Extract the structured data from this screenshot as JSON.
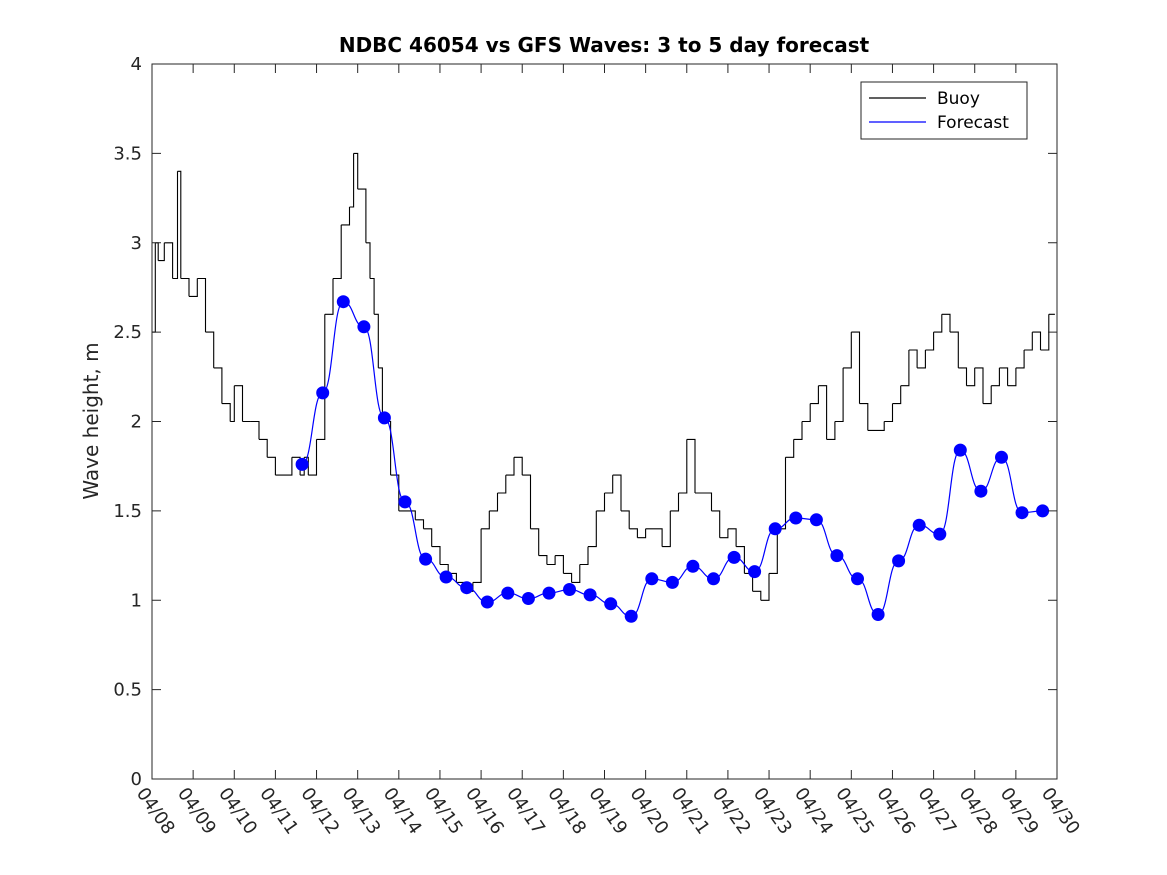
{
  "chart_data": {
    "type": "line",
    "title": "NDBC 46054 vs GFS Waves: 3 to 5 day forecast",
    "xlabel": "",
    "ylabel": "Wave height, m",
    "xlim": [
      "04/08",
      "04/30"
    ],
    "ylim": [
      0,
      4
    ],
    "yticks": [
      0,
      0.5,
      1,
      1.5,
      2,
      2.5,
      3,
      3.5,
      4
    ],
    "yticklabels": [
      "0",
      "0.5",
      "1",
      "1.5",
      "2",
      "2.5",
      "3",
      "3.5",
      "4"
    ],
    "xticklabels": [
      "04/08",
      "04/09",
      "04/10",
      "04/11",
      "04/12",
      "04/13",
      "04/14",
      "04/15",
      "04/16",
      "04/17",
      "04/18",
      "04/19",
      "04/20",
      "04/21",
      "04/22",
      "04/23",
      "04/24",
      "04/25",
      "04/26",
      "04/27",
      "04/28",
      "04/29",
      "04/30"
    ],
    "grid": false,
    "legend": {
      "placement": "top-right",
      "entries": [
        "Buoy",
        "Forecast"
      ]
    },
    "colors": {
      "buoy": "#000000",
      "forecast": "#0000ff",
      "markers": "#0000ff"
    },
    "series": [
      {
        "name": "Buoy",
        "x_days_from_0408": [
          0,
          0.08,
          0.15,
          0.3,
          0.5,
          0.62,
          0.7,
          0.9,
          1.1,
          1.3,
          1.5,
          1.7,
          1.9,
          2.0,
          2.2,
          2.4,
          2.6,
          2.8,
          3.0,
          3.2,
          3.4,
          3.6,
          3.7,
          3.8,
          4.0,
          4.2,
          4.4,
          4.6,
          4.8,
          4.9,
          5.0,
          5.2,
          5.3,
          5.4,
          5.5,
          5.6,
          5.8,
          6.0,
          6.2,
          6.4,
          6.6,
          6.8,
          7.0,
          7.2,
          7.4,
          7.6,
          7.8,
          8.0,
          8.2,
          8.4,
          8.6,
          8.8,
          9.0,
          9.2,
          9.4,
          9.6,
          9.8,
          10.0,
          10.2,
          10.4,
          10.6,
          10.8,
          11.0,
          11.2,
          11.4,
          11.6,
          11.8,
          12.0,
          12.2,
          12.4,
          12.6,
          12.8,
          13.0,
          13.2,
          13.4,
          13.6,
          13.8,
          14.0,
          14.2,
          14.4,
          14.6,
          14.8,
          15.0,
          15.2,
          15.4,
          15.6,
          15.8,
          16.0,
          16.2,
          16.4,
          16.6,
          16.8,
          17.0,
          17.2,
          17.4,
          17.6,
          17.8,
          18.0,
          18.2,
          18.4,
          18.6,
          18.8,
          19.0,
          19.2,
          19.4,
          19.6,
          19.8,
          20.0,
          20.2,
          20.4,
          20.6,
          20.8,
          21.0,
          21.2,
          21.4,
          21.6,
          21.8,
          21.95
        ],
        "values": [
          2.5,
          3.0,
          2.9,
          3.0,
          2.8,
          3.4,
          2.8,
          2.7,
          2.8,
          2.5,
          2.3,
          2.1,
          2.0,
          2.2,
          2.0,
          2.0,
          1.9,
          1.8,
          1.7,
          1.7,
          1.8,
          1.7,
          1.8,
          1.7,
          1.9,
          2.6,
          2.8,
          3.1,
          3.2,
          3.5,
          3.3,
          3.0,
          2.8,
          2.6,
          2.3,
          2.0,
          1.7,
          1.5,
          1.5,
          1.45,
          1.4,
          1.3,
          1.2,
          1.15,
          1.1,
          1.05,
          1.1,
          1.4,
          1.5,
          1.6,
          1.7,
          1.8,
          1.7,
          1.4,
          1.25,
          1.2,
          1.25,
          1.15,
          1.1,
          1.2,
          1.3,
          1.5,
          1.6,
          1.7,
          1.5,
          1.4,
          1.35,
          1.4,
          1.4,
          1.3,
          1.5,
          1.6,
          1.9,
          1.6,
          1.6,
          1.5,
          1.35,
          1.4,
          1.3,
          1.15,
          1.05,
          1.0,
          1.15,
          1.4,
          1.8,
          1.9,
          2.0,
          2.1,
          2.2,
          1.9,
          2.0,
          2.3,
          2.5,
          2.1,
          1.95,
          1.95,
          2.0,
          2.1,
          2.2,
          2.4,
          2.3,
          2.4,
          2.5,
          2.6,
          2.5,
          2.3,
          2.2,
          2.3,
          2.1,
          2.2,
          2.3,
          2.2,
          2.3,
          2.4,
          2.5,
          2.4,
          2.6,
          2.6
        ]
      },
      {
        "name": "Forecast",
        "marker_x_days_from_0408": [
          3.65,
          4.15,
          4.65,
          5.15,
          5.65,
          6.15,
          6.65,
          7.15,
          7.65,
          8.15,
          8.65,
          9.15,
          9.65,
          10.15,
          10.65,
          11.15,
          11.65,
          12.15,
          12.65,
          13.15,
          13.65,
          14.15,
          14.65,
          15.15,
          15.65,
          16.15,
          16.65,
          17.15,
          17.65,
          18.15,
          18.65,
          19.15,
          19.65,
          20.15,
          20.65,
          21.15,
          21.65
        ],
        "marker_values": [
          1.76,
          2.16,
          2.67,
          2.53,
          2.02,
          1.55,
          1.23,
          1.13,
          1.07,
          0.99,
          1.04,
          1.01,
          1.04,
          1.06,
          1.03,
          0.98,
          0.91,
          1.12,
          1.1,
          1.19,
          1.12,
          1.24,
          1.16,
          1.4,
          1.46,
          1.45,
          1.25,
          1.12,
          0.92,
          1.22,
          1.42,
          1.37,
          1.84,
          1.61,
          1.8,
          1.49,
          1.5
        ]
      }
    ]
  }
}
